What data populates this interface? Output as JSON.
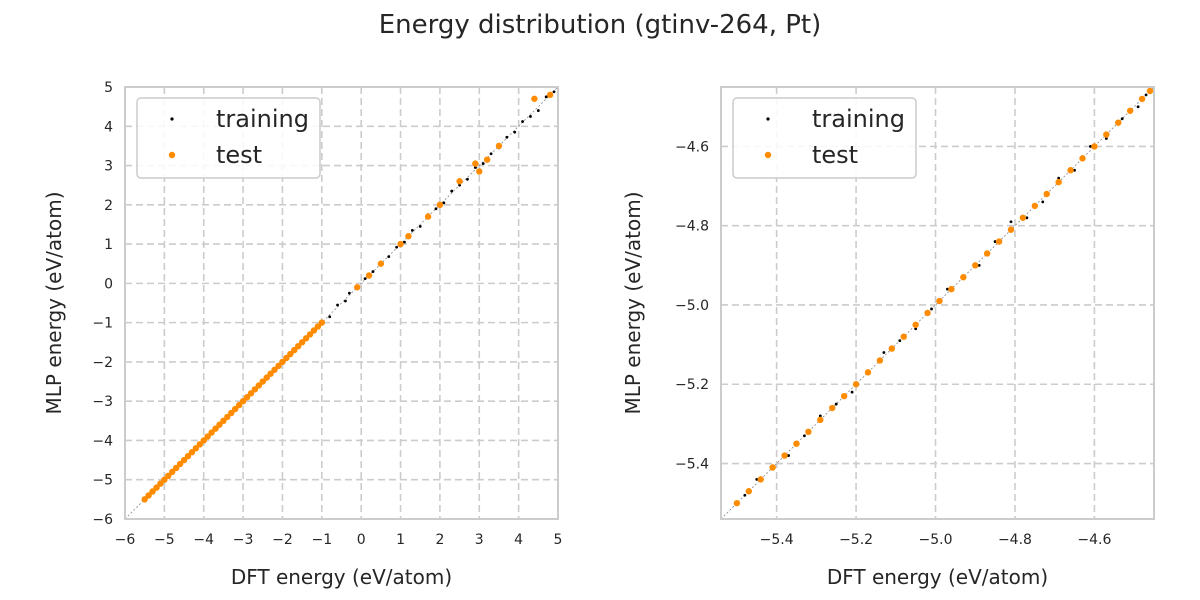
{
  "figure": {
    "title": "Energy distribution (gtinv-264, Pt)"
  },
  "chart_data": [
    {
      "type": "scatter",
      "xlabel": "DFT energy (eV/atom)",
      "ylabel": "MLP energy (eV/atom)",
      "xlim": [
        -6,
        5
      ],
      "ylim": [
        -6,
        5
      ],
      "xticks": [
        -6,
        -5,
        -4,
        -3,
        -2,
        -1,
        0,
        1,
        2,
        3,
        4,
        5
      ],
      "xtick_labels": [
        "−6",
        "−5",
        "−4",
        "−3",
        "−2",
        "−1",
        "0",
        "1",
        "2",
        "3",
        "4",
        "5"
      ],
      "yticks": [
        -6,
        -5,
        -4,
        -3,
        -2,
        -1,
        0,
        1,
        2,
        3,
        4,
        5
      ],
      "ytick_labels": [
        "−6",
        "−5",
        "−4",
        "−3",
        "−2",
        "−1",
        "0",
        "1",
        "2",
        "3",
        "4",
        "5"
      ],
      "grid": true,
      "grid_style": "dashed",
      "diagonal_reference": true,
      "legend_position": "top-left",
      "series": [
        {
          "name": "training",
          "color": "#000000",
          "marker": "dot-small",
          "x": [
            -5.5,
            -5.2,
            -4.9,
            -4.6,
            -4.3,
            -4.0,
            -3.7,
            -3.4,
            -3.1,
            -2.8,
            -2.5,
            -2.2,
            -1.9,
            -1.6,
            -1.3,
            -1.0,
            -0.8,
            -0.6,
            -0.4,
            -0.3,
            -0.1,
            0.1,
            0.3,
            0.5,
            0.7,
            0.9,
            1.1,
            1.3,
            1.5,
            1.7,
            1.9,
            2.1,
            2.3,
            2.5,
            2.7,
            2.9,
            3.1,
            3.3,
            3.5,
            3.7,
            3.9,
            4.1,
            4.3,
            4.5,
            4.7,
            4.9
          ],
          "y": [
            -5.5,
            -5.2,
            -4.9,
            -4.6,
            -4.3,
            -4.0,
            -3.7,
            -3.4,
            -3.1,
            -2.8,
            -2.5,
            -2.2,
            -1.9,
            -1.6,
            -1.3,
            -1.0,
            -0.85,
            -0.55,
            -0.45,
            -0.25,
            -0.1,
            0.12,
            0.3,
            0.52,
            0.68,
            0.92,
            1.05,
            1.35,
            1.45,
            1.75,
            1.9,
            2.05,
            2.35,
            2.5,
            2.65,
            2.95,
            3.05,
            3.3,
            3.45,
            3.72,
            3.85,
            4.12,
            4.25,
            4.4,
            4.75,
            4.88
          ]
        },
        {
          "name": "test",
          "color": "#ff8c00",
          "marker": "dot",
          "x": [
            -5.5,
            -5.4,
            -5.3,
            -5.2,
            -5.1,
            -5.0,
            -4.9,
            -4.8,
            -4.7,
            -4.6,
            -4.5,
            -4.4,
            -4.3,
            -4.2,
            -4.1,
            -4.0,
            -3.9,
            -3.8,
            -3.7,
            -3.6,
            -3.5,
            -3.4,
            -3.3,
            -3.2,
            -3.1,
            -3.0,
            -2.9,
            -2.8,
            -2.7,
            -2.6,
            -2.5,
            -2.4,
            -2.3,
            -2.2,
            -2.1,
            -2.0,
            -1.9,
            -1.8,
            -1.7,
            -1.6,
            -1.5,
            -1.4,
            -1.3,
            -1.2,
            -1.1,
            -1.0,
            -0.1,
            0.2,
            0.5,
            1.0,
            1.2,
            1.7,
            2.0,
            2.5,
            2.9,
            3.0,
            3.2,
            3.5,
            4.4,
            4.8
          ],
          "y": [
            -5.5,
            -5.4,
            -5.3,
            -5.2,
            -5.1,
            -5.0,
            -4.9,
            -4.8,
            -4.7,
            -4.6,
            -4.5,
            -4.4,
            -4.3,
            -4.2,
            -4.1,
            -4.0,
            -3.9,
            -3.8,
            -3.7,
            -3.6,
            -3.5,
            -3.4,
            -3.3,
            -3.2,
            -3.1,
            -3.0,
            -2.9,
            -2.8,
            -2.7,
            -2.6,
            -2.5,
            -2.4,
            -2.3,
            -2.2,
            -2.1,
            -2.0,
            -1.9,
            -1.8,
            -1.7,
            -1.6,
            -1.5,
            -1.4,
            -1.3,
            -1.2,
            -1.1,
            -1.0,
            -0.1,
            0.2,
            0.5,
            1.0,
            1.2,
            1.7,
            2.0,
            2.6,
            3.05,
            2.85,
            3.15,
            3.5,
            4.7,
            4.8
          ]
        }
      ]
    },
    {
      "type": "scatter",
      "xlabel": "DFT energy (eV/atom)",
      "ylabel": "MLP energy (eV/atom)",
      "xlim": [
        -5.54,
        -4.45
      ],
      "ylim": [
        -5.54,
        -4.45
      ],
      "xticks": [
        -5.4,
        -5.2,
        -5.0,
        -4.8,
        -4.6
      ],
      "xtick_labels": [
        "−5.4",
        "−5.2",
        "−5.0",
        "−4.8",
        "−4.6"
      ],
      "yticks": [
        -5.4,
        -5.2,
        -5.0,
        -4.8,
        -4.6
      ],
      "ytick_labels": [
        "−5.4",
        "−5.2",
        "−5.0",
        "−4.8",
        "−4.6"
      ],
      "grid": true,
      "grid_style": "dashed",
      "diagonal_reference": true,
      "legend_position": "top-left",
      "series": [
        {
          "name": "training",
          "color": "#000000",
          "marker": "dot-small",
          "x": [
            -5.48,
            -5.45,
            -5.41,
            -5.37,
            -5.33,
            -5.29,
            -5.25,
            -5.21,
            -5.17,
            -5.13,
            -5.09,
            -5.05,
            -5.01,
            -4.97,
            -4.93,
            -4.89,
            -4.85,
            -4.81,
            -4.77,
            -4.73,
            -4.69,
            -4.65,
            -4.61,
            -4.57,
            -4.53,
            -4.49,
            -4.47
          ],
          "y": [
            -5.48,
            -5.44,
            -5.41,
            -5.38,
            -5.33,
            -5.28,
            -5.25,
            -5.22,
            -5.17,
            -5.12,
            -5.09,
            -5.06,
            -5.01,
            -4.96,
            -4.93,
            -4.9,
            -4.84,
            -4.79,
            -4.78,
            -4.74,
            -4.68,
            -4.66,
            -4.6,
            -4.58,
            -4.53,
            -4.5,
            -4.47
          ]
        },
        {
          "name": "test",
          "color": "#ff8c00",
          "marker": "dot",
          "x": [
            -5.5,
            -5.47,
            -5.44,
            -5.41,
            -5.38,
            -5.35,
            -5.32,
            -5.29,
            -5.26,
            -5.23,
            -5.2,
            -5.17,
            -5.14,
            -5.11,
            -5.08,
            -5.05,
            -5.02,
            -4.99,
            -4.96,
            -4.93,
            -4.9,
            -4.87,
            -4.84,
            -4.81,
            -4.78,
            -4.75,
            -4.72,
            -4.69,
            -4.66,
            -4.63,
            -4.6,
            -4.57,
            -4.54,
            -4.51,
            -4.48,
            -4.46
          ],
          "y": [
            -5.5,
            -5.47,
            -5.44,
            -5.41,
            -5.38,
            -5.35,
            -5.32,
            -5.29,
            -5.26,
            -5.23,
            -5.2,
            -5.17,
            -5.14,
            -5.11,
            -5.08,
            -5.05,
            -5.02,
            -4.99,
            -4.96,
            -4.93,
            -4.9,
            -4.87,
            -4.84,
            -4.81,
            -4.78,
            -4.75,
            -4.72,
            -4.69,
            -4.66,
            -4.63,
            -4.6,
            -4.57,
            -4.54,
            -4.51,
            -4.48,
            -4.46
          ]
        }
      ]
    }
  ]
}
